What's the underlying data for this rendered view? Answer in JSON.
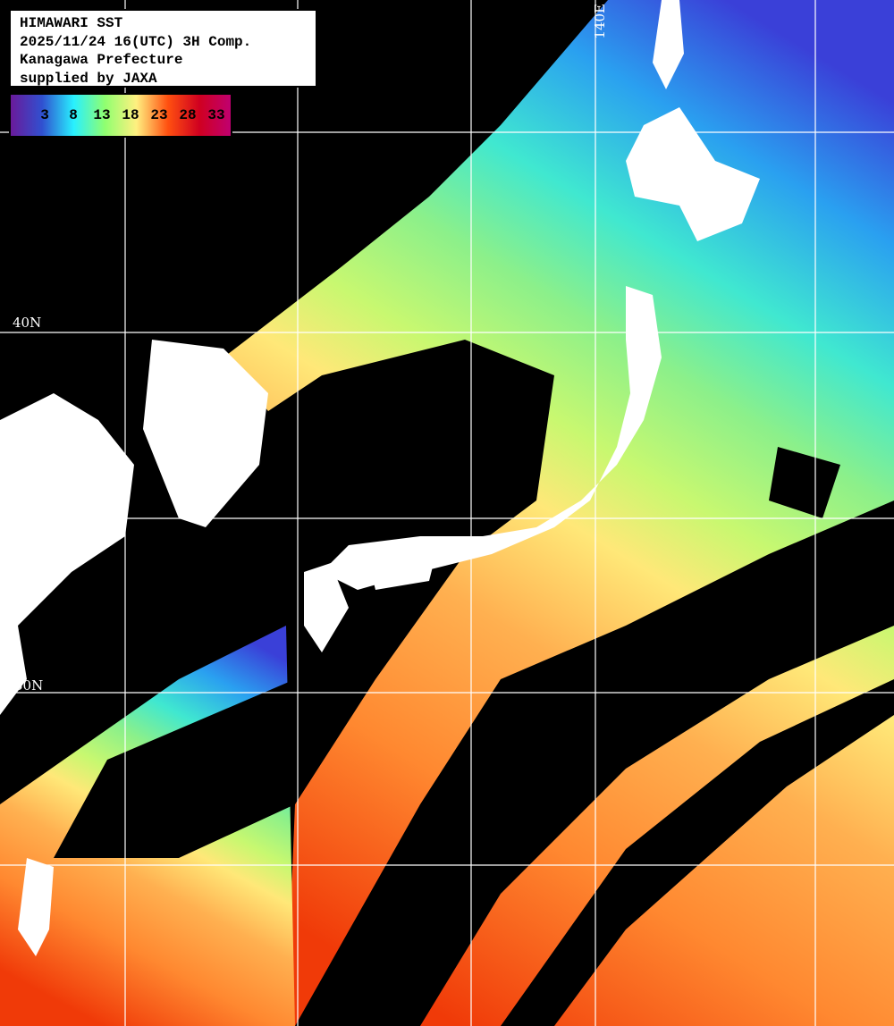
{
  "header": {
    "lines": [
      "HIMAWARI SST",
      "2025/11/24 16(UTC) 3H Comp.",
      "Kanagawa Prefecture",
      "supplied by JAXA"
    ]
  },
  "legend": {
    "ticks": [
      "3",
      "8",
      "13",
      "18",
      "23",
      "28",
      "33"
    ],
    "colors": [
      "#6a1a9a",
      "#3050d0",
      "#28f0ff",
      "#90ff70",
      "#fff080",
      "#ff5010",
      "#d00020",
      "#c00070"
    ]
  },
  "grid_labels": {
    "lat_40": "40N",
    "lat_30": "30N",
    "lon_140": "140E"
  },
  "colors": {
    "cloud": "#000000",
    "land": "#ffffff",
    "grid": "#ffffff"
  }
}
